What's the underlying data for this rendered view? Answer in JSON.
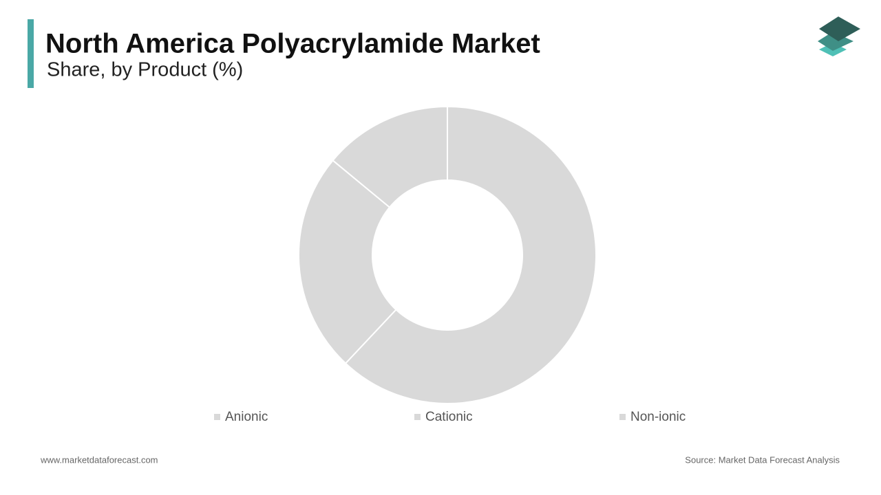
{
  "chart_data": {
    "type": "donut",
    "title": "North America Polyacrylamide Market",
    "subtitle": "Share, by Product (%)",
    "categories": [
      "Anionic",
      "Cationic",
      "Non-ionic"
    ],
    "values": [
      62,
      24,
      14
    ],
    "colors": [
      "#d9d9d9",
      "#d9d9d9",
      "#d9d9d9"
    ],
    "legend": "bottom"
  },
  "footer": {
    "website": "www.marketdataforecast.com",
    "source": "Source: Market Data Forecast Analysis"
  }
}
